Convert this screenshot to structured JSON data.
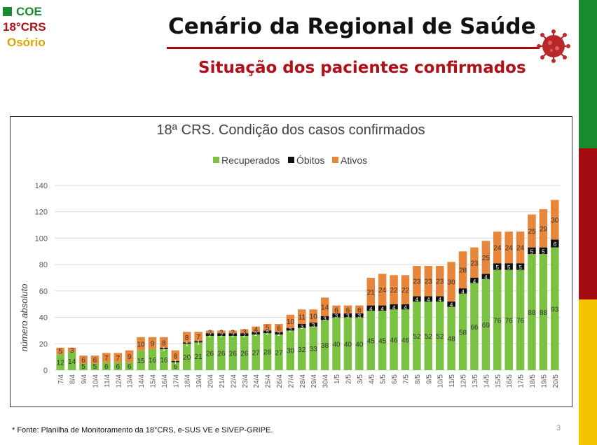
{
  "logo": {
    "line1": "COE",
    "line2": "18°CRS",
    "line3": "Osório"
  },
  "header": {
    "title": "Cenário da Regional de Saúde",
    "subtitle": "Situação dos pacientes confirmados"
  },
  "colors": {
    "recuperados": "#7cc242",
    "obitos": "#111111",
    "ativos": "#e8863c",
    "green": "#1a8a2e",
    "red": "#a30d12",
    "yellow": "#f5c400"
  },
  "footnote": "* Fonte: Planilha de Monitoramento da 18°CRS, e-SUS VE e SIVEP-GRIPE.",
  "page_number": "3",
  "chart_data": {
    "type": "bar",
    "stacked": true,
    "title": "18ª CRS. Condição dos casos confirmados",
    "ylabel": "número absoluto",
    "xlabel": "",
    "ylim": [
      0,
      140
    ],
    "yticks": [
      0,
      20,
      40,
      60,
      80,
      100,
      120,
      140
    ],
    "legend_position": "top",
    "categories": [
      "7/4",
      "8/4",
      "9/4",
      "10/4",
      "11/4",
      "12/4",
      "13/4",
      "14/4",
      "15/4",
      "16/4",
      "17/4",
      "18/4",
      "19/4",
      "20/4",
      "21/4",
      "22/4",
      "23/4",
      "24/4",
      "25/4",
      "26/4",
      "27/4",
      "28/4",
      "29/4",
      "30/4",
      "1/5",
      "2/5",
      "3/5",
      "4/5",
      "5/5",
      "6/5",
      "7/5",
      "8/5",
      "9/5",
      "10/5",
      "11/5",
      "12/5",
      "13/5",
      "14/5",
      "15/5",
      "16/5",
      "17/5",
      "18/5",
      "19/5",
      "20/5"
    ],
    "series": [
      {
        "name": "Recuperados",
        "values": [
          12,
          14,
          5,
          5,
          6,
          6,
          6,
          15,
          16,
          16,
          6,
          20,
          21,
          26,
          26,
          26,
          26,
          27,
          28,
          27,
          30,
          32,
          33,
          38,
          40,
          40,
          40,
          45,
          45,
          46,
          46,
          52,
          52,
          52,
          48,
          58,
          66,
          69,
          76,
          76,
          76,
          88,
          88,
          93
        ]
      },
      {
        "name": "Óbitos",
        "values": [
          0,
          0,
          0,
          0,
          0,
          0,
          0,
          0,
          0,
          1,
          1,
          1,
          1,
          2,
          2,
          2,
          2,
          2,
          2,
          2,
          2,
          3,
          3,
          3,
          3,
          3,
          3,
          4,
          4,
          4,
          4,
          4,
          4,
          4,
          4,
          4,
          4,
          4,
          5,
          5,
          5,
          5,
          5,
          6
        ]
      },
      {
        "name": "Ativos",
        "values": [
          5,
          3,
          6,
          6,
          7,
          7,
          9,
          10,
          9,
          8,
          8,
          8,
          7,
          2,
          2,
          2,
          3,
          4,
          5,
          6,
          10,
          11,
          10,
          14,
          6,
          6,
          6,
          21,
          24,
          22,
          22,
          23,
          23,
          23,
          30,
          28,
          23,
          25,
          24,
          24,
          24,
          25,
          29,
          30
        ]
      }
    ]
  }
}
